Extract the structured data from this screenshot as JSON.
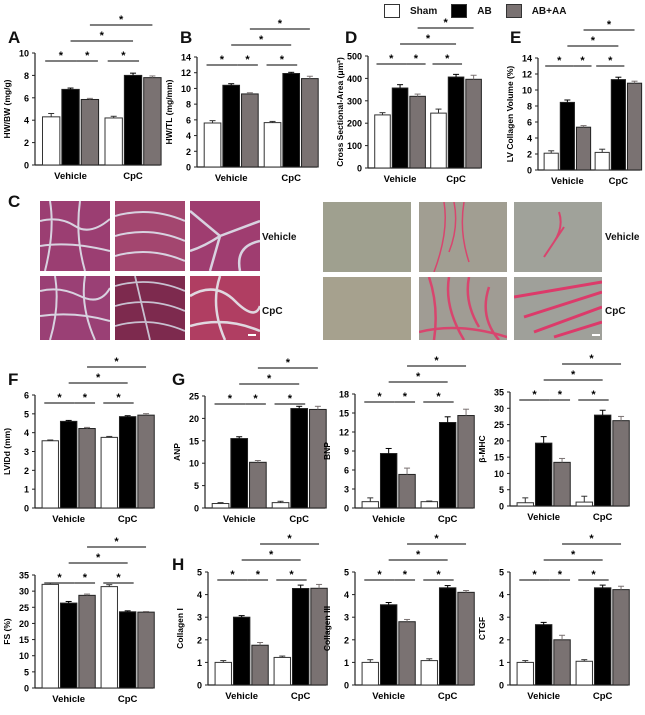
{
  "legend": {
    "items": [
      {
        "label": "Sham",
        "color": "#ffffff"
      },
      {
        "label": "AB",
        "color": "#000000"
      },
      {
        "label": "AB+AA",
        "color": "#7a7272"
      }
    ]
  },
  "panel_letters": {
    "A": "A",
    "B": "B",
    "C": "C",
    "D": "D",
    "E": "E",
    "F": "F",
    "G": "G",
    "H": "H"
  },
  "micrographs": {
    "he_labels": {
      "row1": "Vehicle",
      "row2": "CpC"
    },
    "psr_labels": {
      "row1": "Vehicle",
      "row2": "CpC"
    }
  },
  "chart_data": [
    {
      "id": "A",
      "type": "bar",
      "ylabel": "HW/BW (mg/g)",
      "categories": [
        "Vehicle",
        "CpC"
      ],
      "ylim": [
        0,
        10
      ],
      "yticks": [
        0,
        2,
        4,
        6,
        8,
        10
      ],
      "series": [
        {
          "name": "Sham",
          "values": [
            4.3,
            4.2
          ],
          "err": [
            0.3,
            0.15
          ]
        },
        {
          "name": "AB",
          "values": [
            6.75,
            8.0
          ],
          "err": [
            0.12,
            0.2
          ]
        },
        {
          "name": "AB+AA",
          "values": [
            5.85,
            7.8
          ],
          "err": [
            0.1,
            0.15
          ]
        }
      ],
      "significance": "*"
    },
    {
      "id": "B",
      "type": "bar",
      "ylabel": "HW/TL (mg/mm)",
      "categories": [
        "Vehicle",
        "CpC"
      ],
      "ylim": [
        0,
        14
      ],
      "yticks": [
        0,
        2,
        4,
        6,
        8,
        10,
        12,
        14
      ],
      "series": [
        {
          "name": "Sham",
          "values": [
            5.6,
            5.65
          ],
          "err": [
            0.3,
            0.15
          ]
        },
        {
          "name": "AB",
          "values": [
            10.4,
            11.9
          ],
          "err": [
            0.2,
            0.15
          ]
        },
        {
          "name": "AB+AA",
          "values": [
            9.3,
            11.25
          ],
          "err": [
            0.15,
            0.3
          ]
        }
      ],
      "significance": "*"
    },
    {
      "id": "D",
      "type": "bar",
      "ylabel": "Cross Sectional-Area (μm²)",
      "categories": [
        "Vehicle",
        "CpC"
      ],
      "ylim": [
        0,
        500
      ],
      "yticks": [
        0,
        100,
        200,
        300,
        400,
        500
      ],
      "series": [
        {
          "name": "Sham",
          "values": [
            237,
            245
          ],
          "err": [
            10,
            18
          ]
        },
        {
          "name": "AB",
          "values": [
            357,
            406
          ],
          "err": [
            15,
            12
          ]
        },
        {
          "name": "AB+AA",
          "values": [
            320,
            396
          ],
          "err": [
            10,
            18
          ]
        }
      ],
      "significance": "*"
    },
    {
      "id": "E",
      "type": "bar",
      "ylabel": "LV Collagen Volume (%)",
      "categories": [
        "Vehicle",
        "CpC"
      ],
      "ylim": [
        0,
        14
      ],
      "yticks": [
        0,
        2,
        4,
        6,
        8,
        10,
        12,
        14
      ],
      "series": [
        {
          "name": "Sham",
          "values": [
            2.1,
            2.2
          ],
          "err": [
            0.3,
            0.4
          ]
        },
        {
          "name": "AB",
          "values": [
            8.45,
            11.3
          ],
          "err": [
            0.3,
            0.3
          ]
        },
        {
          "name": "AB+AA",
          "values": [
            5.35,
            10.85
          ],
          "err": [
            0.2,
            0.25
          ]
        }
      ],
      "significance": "*"
    },
    {
      "id": "F",
      "type": "bar",
      "ylabel": "LVIDd (mm)",
      "categories": [
        "Vehicle",
        "CpC"
      ],
      "ylim": [
        0,
        6
      ],
      "yticks": [
        0,
        1,
        2,
        3,
        4,
        5,
        6
      ],
      "series": [
        {
          "name": "Sham",
          "values": [
            3.57,
            3.75
          ],
          "err": [
            0.04,
            0.05
          ]
        },
        {
          "name": "AB",
          "values": [
            4.6,
            4.85
          ],
          "err": [
            0.05,
            0.05
          ]
        },
        {
          "name": "AB+AA",
          "values": [
            4.22,
            4.93
          ],
          "err": [
            0.06,
            0.08
          ]
        }
      ],
      "significance": "*"
    },
    {
      "id": "G-ANP",
      "type": "bar",
      "ylabel": "ANP",
      "categories": [
        "Vehicle",
        "CpC"
      ],
      "ylim": [
        0,
        25
      ],
      "yticks": [
        0,
        5,
        10,
        15,
        20,
        25
      ],
      "series": [
        {
          "name": "Sham",
          "values": [
            1.0,
            1.2
          ],
          "err": [
            0.2,
            0.3
          ]
        },
        {
          "name": "AB",
          "values": [
            15.5,
            22.2
          ],
          "err": [
            0.4,
            0.5
          ]
        },
        {
          "name": "AB+AA",
          "values": [
            10.2,
            22.0
          ],
          "err": [
            0.4,
            0.7
          ]
        }
      ],
      "significance": "*"
    },
    {
      "id": "G-BNP",
      "type": "bar",
      "ylabel": "BNP",
      "categories": [
        "Vehicle",
        "CpC"
      ],
      "ylim": [
        0,
        18
      ],
      "yticks": [
        0,
        3,
        6,
        9,
        12,
        15,
        18
      ],
      "series": [
        {
          "name": "Sham",
          "values": [
            1.0,
            1.0
          ],
          "err": [
            0.6,
            0.1
          ]
        },
        {
          "name": "AB",
          "values": [
            8.6,
            13.5
          ],
          "err": [
            0.8,
            0.9
          ]
        },
        {
          "name": "AB+AA",
          "values": [
            5.3,
            14.6
          ],
          "err": [
            1.0,
            1.0
          ]
        }
      ],
      "significance": "*"
    },
    {
      "id": "G-bMHC",
      "type": "bar",
      "ylabel": "β-MHC",
      "categories": [
        "Vehicle",
        "CpC"
      ],
      "ylim": [
        0,
        35
      ],
      "yticks": [
        0,
        5,
        10,
        15,
        20,
        25,
        30,
        35
      ],
      "series": [
        {
          "name": "Sham",
          "values": [
            1.0,
            1.2
          ],
          "err": [
            1.5,
            1.8
          ]
        },
        {
          "name": "AB",
          "values": [
            19.3,
            27.9
          ],
          "err": [
            2.0,
            1.5
          ]
        },
        {
          "name": "AB+AA",
          "values": [
            13.4,
            26.2
          ],
          "err": [
            1.2,
            1.3
          ]
        }
      ],
      "significance": "*"
    },
    {
      "id": "F-FS",
      "type": "bar",
      "ylabel": "FS (%)",
      "categories": [
        "Vehicle",
        "CpC"
      ],
      "ylim": [
        0,
        35
      ],
      "yticks": [
        0,
        5,
        10,
        15,
        20,
        25,
        30,
        35
      ],
      "series": [
        {
          "name": "Sham",
          "values": [
            32.1,
            31.4
          ],
          "err": [
            0.4,
            0.6
          ]
        },
        {
          "name": "AB",
          "values": [
            26.3,
            23.6
          ],
          "err": [
            0.5,
            0.3
          ]
        },
        {
          "name": "AB+AA",
          "values": [
            28.7,
            23.5
          ],
          "err": [
            0.4,
            0.2
          ]
        }
      ],
      "significance": "*"
    },
    {
      "id": "H-Col1",
      "type": "bar",
      "ylabel": "Collagen I",
      "categories": [
        "Vehicle",
        "CpC"
      ],
      "ylim": [
        0,
        5
      ],
      "yticks": [
        0,
        1,
        2,
        3,
        4,
        5
      ],
      "series": [
        {
          "name": "Sham",
          "values": [
            1.0,
            1.22
          ],
          "err": [
            0.08,
            0.06
          ]
        },
        {
          "name": "AB",
          "values": [
            3.0,
            4.27
          ],
          "err": [
            0.07,
            0.15
          ]
        },
        {
          "name": "AB+AA",
          "values": [
            1.76,
            4.28
          ],
          "err": [
            0.12,
            0.17
          ]
        }
      ],
      "significance": "*"
    },
    {
      "id": "H-Col3",
      "type": "bar",
      "ylabel": "Collagen III",
      "categories": [
        "Vehicle",
        "CpC"
      ],
      "ylim": [
        0,
        5
      ],
      "yticks": [
        0,
        1,
        2,
        3,
        4,
        5
      ],
      "series": [
        {
          "name": "Sham",
          "values": [
            1.0,
            1.08
          ],
          "err": [
            0.12,
            0.08
          ]
        },
        {
          "name": "AB",
          "values": [
            3.55,
            4.3
          ],
          "err": [
            0.1,
            0.1
          ]
        },
        {
          "name": "AB+AA",
          "values": [
            2.8,
            4.1
          ],
          "err": [
            0.1,
            0.08
          ]
        }
      ],
      "significance": "*"
    },
    {
      "id": "H-CTGF",
      "type": "bar",
      "ylabel": "CTGF",
      "categories": [
        "Vehicle",
        "CpC"
      ],
      "ylim": [
        0,
        5
      ],
      "yticks": [
        0,
        1,
        2,
        3,
        4,
        5
      ],
      "series": [
        {
          "name": "Sham",
          "values": [
            1.0,
            1.05
          ],
          "err": [
            0.08,
            0.07
          ]
        },
        {
          "name": "AB",
          "values": [
            2.67,
            4.3
          ],
          "err": [
            0.1,
            0.12
          ]
        },
        {
          "name": "AB+AA",
          "values": [
            2.0,
            4.22
          ],
          "err": [
            0.2,
            0.15
          ]
        }
      ],
      "significance": "*"
    }
  ]
}
